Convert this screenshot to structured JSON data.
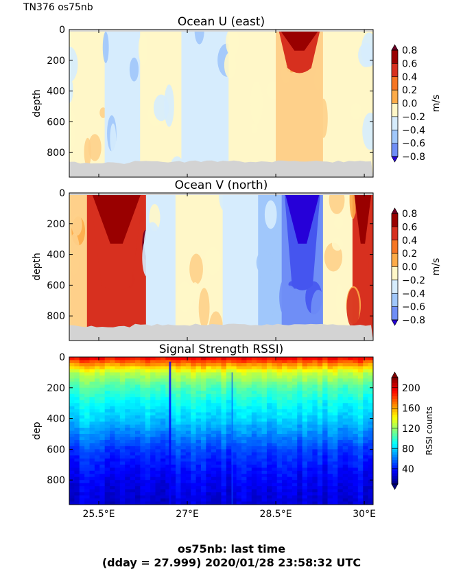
{
  "header": {
    "cruise_label": "TN376 os75nb"
  },
  "caption": {
    "line1": "os75nb: last time",
    "line2": "(dday = 27.999) 2020/01/28 23:58:32 UTC"
  },
  "chart_data": [
    {
      "type": "heatmap",
      "title": "Ocean U (east)",
      "ylabel": "depth",
      "y_ticks": [
        0,
        200,
        400,
        600,
        800
      ],
      "ylim": [
        960,
        0
      ],
      "xlim": [
        25.0,
        30.15
      ],
      "x_ticks": [
        25.5,
        27.0,
        28.5,
        30.0
      ],
      "colorbar": {
        "label": "m/s",
        "ticks": [
          "0.8",
          "0.6",
          "0.4",
          "0.2",
          "0.0",
          "−0.2",
          "−0.4",
          "−0.6",
          "−0.8"
        ],
        "range": [
          -0.8,
          0.8
        ],
        "extend": "both"
      },
      "bottom_depth_approx": 850,
      "columns": [
        {
          "lon_range": [
            25.0,
            25.6
          ],
          "value": 0.1
        },
        {
          "lon_range": [
            25.6,
            26.2
          ],
          "value": -0.1
        },
        {
          "lon_range": [
            26.2,
            26.9
          ],
          "value": 0.1
        },
        {
          "lon_range": [
            26.9,
            27.7
          ],
          "value": -0.1
        },
        {
          "lon_range": [
            27.7,
            28.5
          ],
          "value": 0.1
        },
        {
          "lon_range": [
            28.5,
            29.3
          ],
          "value": 0.3,
          "core_max": 0.8,
          "core_depth": [
            0,
            250
          ]
        },
        {
          "lon_range": [
            29.3,
            30.15
          ],
          "value": 0.1
        }
      ]
    },
    {
      "type": "heatmap",
      "title": "Ocean V (north)",
      "ylabel": "depth",
      "y_ticks": [
        0,
        200,
        400,
        600,
        800
      ],
      "ylim": [
        960,
        0
      ],
      "xlim": [
        25.0,
        30.15
      ],
      "x_ticks": [
        25.5,
        27.0,
        28.5,
        30.0
      ],
      "colorbar": {
        "label": "m/s",
        "ticks": [
          "0.8",
          "0.6",
          "0.4",
          "0.2",
          "0.0",
          "−0.2",
          "−0.4",
          "−0.6",
          "−0.8"
        ],
        "range": [
          -0.8,
          0.8
        ],
        "extend": "both"
      },
      "bottom_depth_approx": 850,
      "columns": [
        {
          "lon_range": [
            25.0,
            25.3
          ],
          "value": 0.3
        },
        {
          "lon_range": [
            25.3,
            26.3
          ],
          "value": 0.7,
          "core_max": 0.8
        },
        {
          "lon_range": [
            26.3,
            26.8
          ],
          "value": -0.1
        },
        {
          "lon_range": [
            26.8,
            27.6
          ],
          "value": 0.1
        },
        {
          "lon_range": [
            27.6,
            28.2
          ],
          "value": -0.1
        },
        {
          "lon_range": [
            28.2,
            28.6
          ],
          "value": -0.3
        },
        {
          "lon_range": [
            28.6,
            29.3
          ],
          "value": -0.6,
          "core_min": -0.8
        },
        {
          "lon_range": [
            29.3,
            29.8
          ],
          "value": 0.1
        },
        {
          "lon_range": [
            29.8,
            30.15
          ],
          "value": 0.6,
          "core_max": 0.8
        }
      ]
    },
    {
      "type": "heatmap",
      "title": "Signal Strength RSSI)",
      "ylabel": "dep",
      "y_ticks": [
        0,
        200,
        400,
        600,
        800
      ],
      "ylim": [
        960,
        0
      ],
      "xlim": [
        25.0,
        30.15
      ],
      "x_ticks": [
        25.5,
        27.0,
        28.5,
        30.0
      ],
      "x_tick_labels": [
        "25.5°E",
        "27°E",
        "28.5°E",
        "30°E"
      ],
      "colorbar": {
        "label": "RSSI counts",
        "ticks": [
          "200",
          "160",
          "120",
          "80",
          "40"
        ],
        "range": [
          10,
          220
        ],
        "extend": "both"
      },
      "profile_depth_vs_rssi": [
        [
          0,
          200
        ],
        [
          40,
          170
        ],
        [
          100,
          130
        ],
        [
          200,
          105
        ],
        [
          300,
          90
        ],
        [
          400,
          80
        ],
        [
          500,
          65
        ],
        [
          600,
          50
        ],
        [
          700,
          42
        ],
        [
          800,
          35
        ],
        [
          960,
          28
        ]
      ]
    }
  ],
  "colors": {
    "terrain_gray": "#d3d3d3",
    "diverging": [
      "#2600d8",
      "#4555ef",
      "#6f8ef6",
      "#a0c7fb",
      "#d6ecfd",
      "#fff7c8",
      "#fed08a",
      "#fdab48",
      "#f67624",
      "#d7301f",
      "#990000",
      "#6b0026"
    ]
  }
}
